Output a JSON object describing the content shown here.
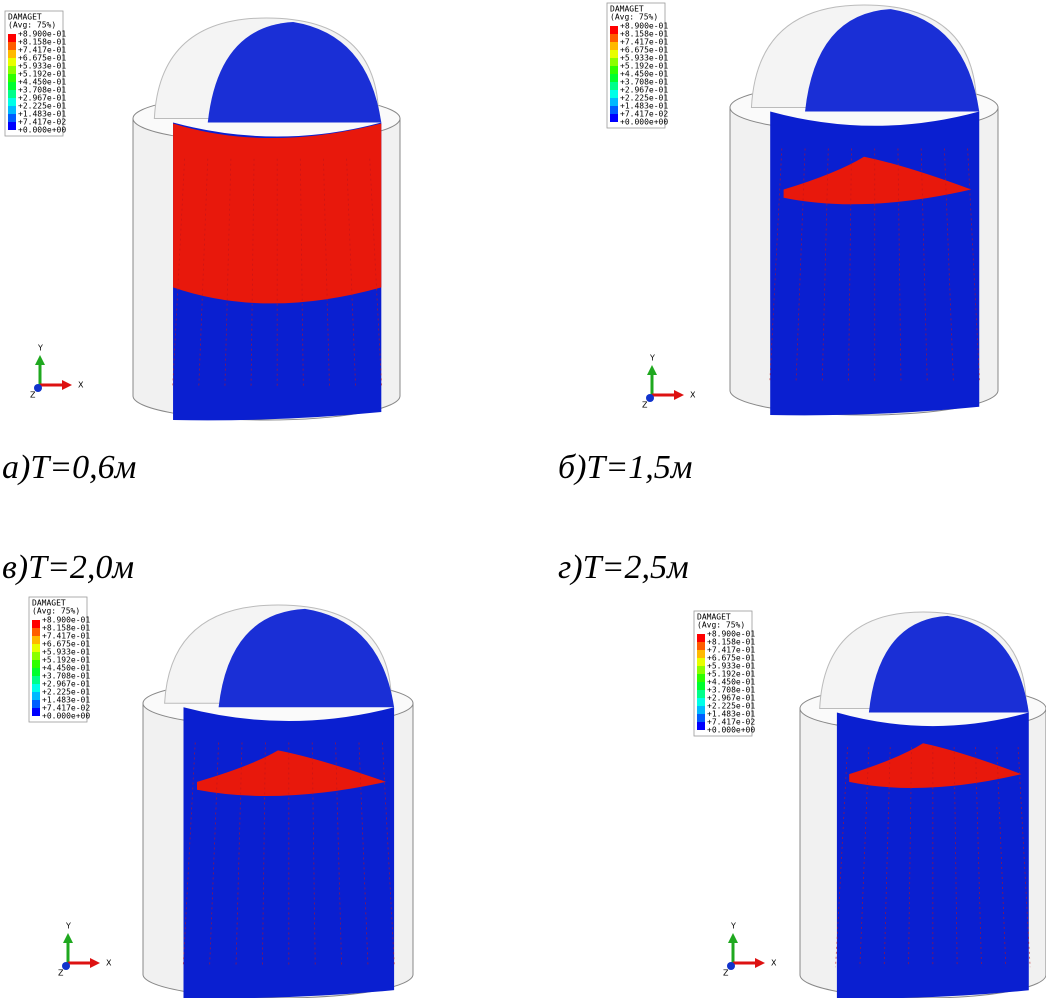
{
  "panels": [
    {
      "legend": {
        "title": "DAMAGET",
        "subtitle": "(Avg: 75%)",
        "values": [
          "+8.900e-01",
          "+8.158e-01",
          "+7.417e-01",
          "+6.675e-01",
          "+5.933e-01",
          "+5.192e-01",
          "+4.450e-01",
          "+3.708e-01",
          "+2.967e-01",
          "+2.225e-01",
          "+1.483e-01",
          "+7.417e-02",
          "+0.000e+00"
        ]
      },
      "axes": {
        "y": "Y",
        "x": "X",
        "z": "Z"
      },
      "caption": "а)T=0,6м"
    },
    {
      "legend": {
        "title": "DAMAGET",
        "subtitle": "(Avg: 75%)",
        "values": [
          "+8.900e-01",
          "+8.158e-01",
          "+7.417e-01",
          "+6.675e-01",
          "+5.933e-01",
          "+5.192e-01",
          "+4.450e-01",
          "+3.708e-01",
          "+2.967e-01",
          "+2.225e-01",
          "+1.483e-01",
          "+7.417e-02",
          "+0.000e+00"
        ]
      },
      "axes": {
        "y": "Y",
        "x": "X",
        "z": "Z"
      },
      "caption": "б)T=1,5м"
    },
    {
      "legend": {
        "title": "DAMAGET",
        "subtitle": "(Avg: 75%)",
        "values": [
          "+8.900e-01",
          "+8.158e-01",
          "+7.417e-01",
          "+6.675e-01",
          "+5.933e-01",
          "+5.192e-01",
          "+4.450e-01",
          "+3.708e-01",
          "+2.967e-01",
          "+2.225e-01",
          "+1.483e-01",
          "+7.417e-02",
          "+0.000e+00"
        ]
      },
      "axes": {
        "y": "Y",
        "x": "X",
        "z": "Z"
      },
      "caption": "в)T=2,0м"
    },
    {
      "legend": {
        "title": "DAMAGET",
        "subtitle": "(Avg: 75%)",
        "values": [
          "+8.900e-01",
          "+8.158e-01",
          "+7.417e-01",
          "+6.675e-01",
          "+5.933e-01",
          "+5.192e-01",
          "+4.450e-01",
          "+3.708e-01",
          "+2.967e-01",
          "+2.225e-01",
          "+1.483e-01",
          "+7.417e-02",
          "+0.000e+00"
        ]
      },
      "axes": {
        "y": "Y",
        "x": "X",
        "z": "Z"
      },
      "caption": "г)T=2,5м"
    }
  ],
  "legend_colors": [
    "#ff0000",
    "#ff5d00",
    "#ffb900",
    "#e8ff00",
    "#8bff00",
    "#2eff00",
    "#00ff2e",
    "#00ff8b",
    "#00ffe8",
    "#00b9ff",
    "#005dff",
    "#0000ff"
  ]
}
